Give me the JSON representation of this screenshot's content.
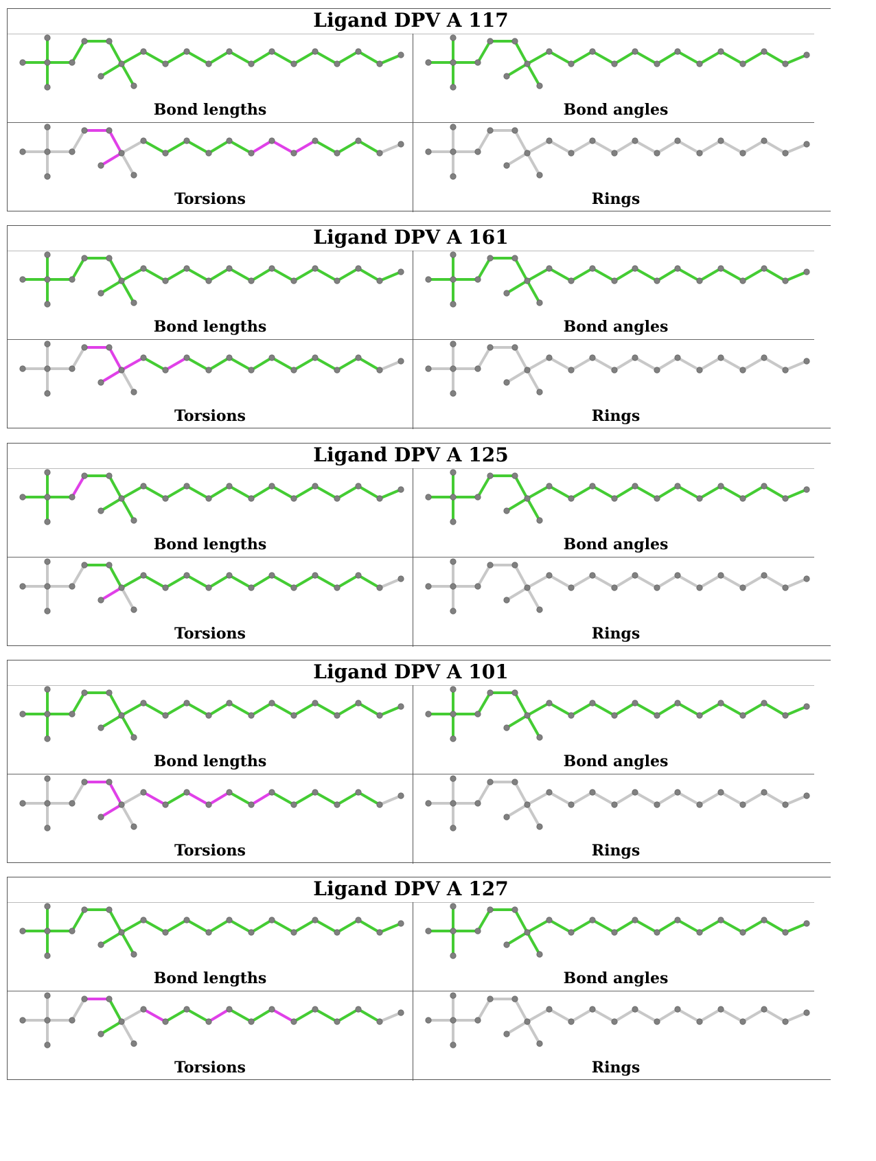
{
  "panel_labels": [
    "Bond lengths",
    "Bond angles",
    "Torsions",
    "Rings"
  ],
  "colors": {
    "ok": "#44cc33",
    "flagged": "#e040e8",
    "neutral": "#c8c8c8",
    "atom": "#808080",
    "border": "#555555"
  },
  "ligands": [
    {
      "title": "Ligand DPV A 117",
      "bond_lengths_flagged": [],
      "torsions_flagged": [
        5,
        6,
        7,
        15,
        16,
        17
      ],
      "torsions_gray": [
        0,
        1,
        2,
        3,
        4,
        8,
        9,
        21
      ]
    },
    {
      "title": "Ligand DPV A 161",
      "bond_lengths_flagged": [],
      "torsions_flagged": [
        5,
        6,
        7,
        9,
        11
      ],
      "torsions_gray": [
        0,
        1,
        2,
        3,
        4,
        8,
        21
      ]
    },
    {
      "title": "Ligand DPV A 125",
      "bond_lengths_flagged": [
        4
      ],
      "torsions_flagged": [
        7
      ],
      "torsions_gray": [
        0,
        1,
        2,
        3,
        4,
        8,
        21
      ]
    },
    {
      "title": "Ligand DPV A 101",
      "bond_lengths_flagged": [],
      "torsions_flagged": [
        5,
        6,
        7,
        10,
        12,
        13,
        15
      ],
      "torsions_gray": [
        0,
        1,
        2,
        3,
        4,
        8,
        9,
        21
      ]
    },
    {
      "title": "Ligand DPV A 127",
      "bond_lengths_flagged": [],
      "torsions_flagged": [
        5,
        10,
        13,
        16
      ],
      "torsions_gray": [
        0,
        1,
        2,
        3,
        4,
        8,
        9,
        21
      ]
    }
  ]
}
